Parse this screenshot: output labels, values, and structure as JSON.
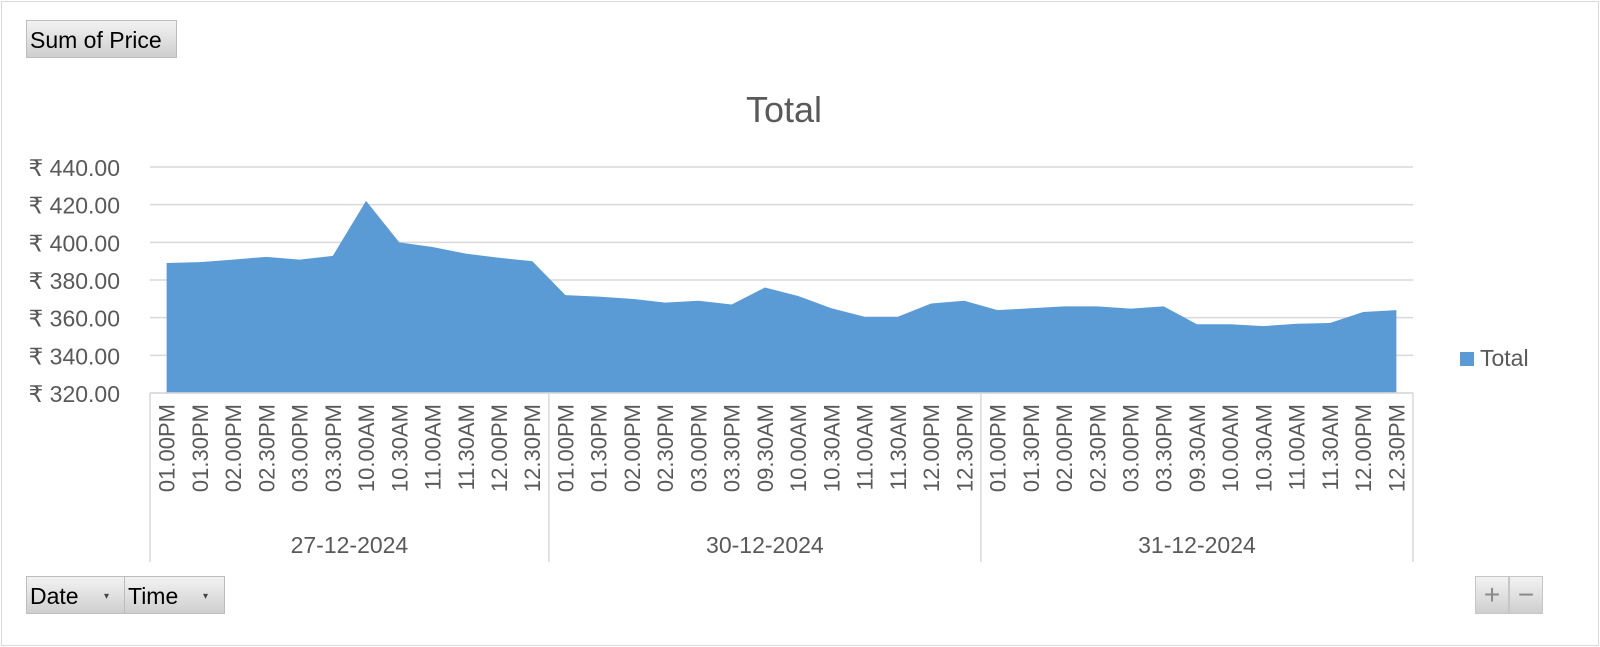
{
  "value_field_button": {
    "label": "Sum of Price"
  },
  "axis_field_buttons": [
    {
      "label": "Date",
      "arrow": "▾"
    },
    {
      "label": "Time",
      "arrow": "▾"
    }
  ],
  "zoom_buttons": {
    "plus": "+",
    "minus": "−"
  },
  "colors": {
    "area": "#5b9bd5",
    "grid": "#d9d9d9",
    "axis": "#d9d9d9",
    "text": "#595959"
  },
  "chart_data": {
    "type": "area",
    "title": "Total",
    "legend": {
      "label": "Total",
      "position": "right"
    },
    "ylim": [
      320,
      440
    ],
    "yticks": [
      320,
      340,
      360,
      380,
      400,
      420,
      440
    ],
    "ytick_labels": [
      "₹ 320.00",
      "₹ 340.00",
      "₹ 360.00",
      "₹ 380.00",
      "₹ 400.00",
      "₹ 420.00",
      "₹ 440.00"
    ],
    "grid": true,
    "groups": [
      {
        "date": "27-12-2024",
        "points": [
          {
            "time": "01.00PM",
            "value": 389
          },
          {
            "time": "01.30PM",
            "value": 389.5
          },
          {
            "time": "02.00PM",
            "value": 390.8
          },
          {
            "time": "02.30PM",
            "value": 392.3
          },
          {
            "time": "03.00PM",
            "value": 390.8
          },
          {
            "time": "03.30PM",
            "value": 392.8
          },
          {
            "time": "10.00AM",
            "value": 422
          },
          {
            "time": "10.30AM",
            "value": 400
          },
          {
            "time": "11.00AM",
            "value": 397.5
          },
          {
            "time": "11.30AM",
            "value": 394
          },
          {
            "time": "12.00PM",
            "value": 391.8
          },
          {
            "time": "12.30PM",
            "value": 390
          }
        ]
      },
      {
        "date": "30-12-2024",
        "points": [
          {
            "time": "01.00PM",
            "value": 372
          },
          {
            "time": "01.30PM",
            "value": 371.2
          },
          {
            "time": "02.00PM",
            "value": 370
          },
          {
            "time": "02.30PM",
            "value": 368
          },
          {
            "time": "03.00PM",
            "value": 369
          },
          {
            "time": "03.30PM",
            "value": 367
          },
          {
            "time": "09.30AM",
            "value": 376
          },
          {
            "time": "10.00AM",
            "value": 371.5
          },
          {
            "time": "10.30AM",
            "value": 365
          },
          {
            "time": "11.00AM",
            "value": 360.5
          },
          {
            "time": "11.30AM",
            "value": 360.5
          },
          {
            "time": "12.00PM",
            "value": 367.5
          },
          {
            "time": "12.30PM",
            "value": 369
          }
        ]
      },
      {
        "date": "31-12-2024",
        "points": [
          {
            "time": "01.00PM",
            "value": 364
          },
          {
            "time": "01.30PM",
            "value": 365
          },
          {
            "time": "02.00PM",
            "value": 366
          },
          {
            "time": "02.30PM",
            "value": 366
          },
          {
            "time": "03.00PM",
            "value": 364.8
          },
          {
            "time": "03.30PM",
            "value": 366
          },
          {
            "time": "09.30AM",
            "value": 356.5
          },
          {
            "time": "10.00AM",
            "value": 356.5
          },
          {
            "time": "10.30AM",
            "value": 355.5
          },
          {
            "time": "11.00AM",
            "value": 356.8
          },
          {
            "time": "11.30AM",
            "value": 357.2
          },
          {
            "time": "12.00PM",
            "value": 363
          },
          {
            "time": "12.30PM",
            "value": 364
          }
        ]
      }
    ]
  }
}
